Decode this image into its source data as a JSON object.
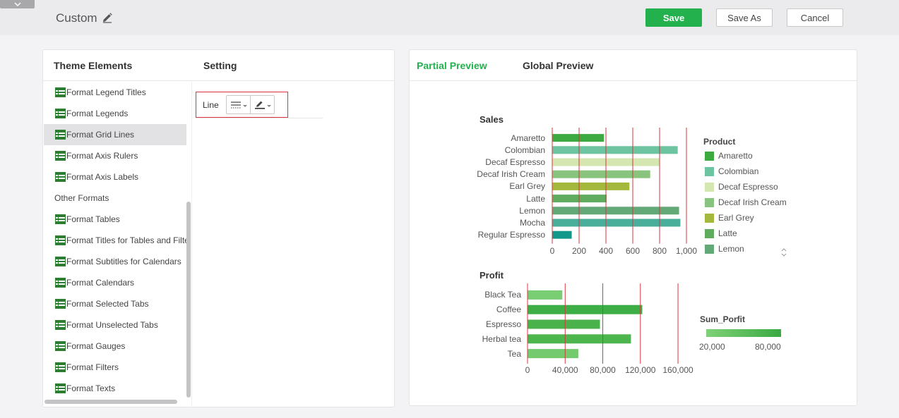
{
  "header": {
    "title": "Custom",
    "save_label": "Save",
    "save_as_label": "Save As",
    "cancel_label": "Cancel"
  },
  "left_panel": {
    "theme_elements_label": "Theme Elements",
    "setting_label": "Setting",
    "items": [
      {
        "label": "Format Legend Titles",
        "icon": "table-icon"
      },
      {
        "label": "Format Legends",
        "icon": "table-icon"
      },
      {
        "label": "Format Grid Lines",
        "icon": "table-icon",
        "selected": true
      },
      {
        "label": "Format Axis Rulers",
        "icon": "table-icon"
      },
      {
        "label": "Format Axis Labels",
        "icon": "table-icon"
      },
      {
        "label": "Other Formats",
        "icon": ""
      },
      {
        "label": "Format Tables",
        "icon": "table-icon"
      },
      {
        "label": "Format Titles for Tables and Filters",
        "icon": "table-icon"
      },
      {
        "label": "Format Subtitles for Calendars",
        "icon": "table-icon"
      },
      {
        "label": "Format Calendars",
        "icon": "table-icon"
      },
      {
        "label": "Format Selected Tabs",
        "icon": "table-icon"
      },
      {
        "label": "Format Unselected Tabs",
        "icon": "table-icon"
      },
      {
        "label": "Format Gauges",
        "icon": "table-icon"
      },
      {
        "label": "Format Filters",
        "icon": "table-icon"
      },
      {
        "label": "Format Texts",
        "icon": "table-icon"
      }
    ],
    "setting": {
      "line_label": "Line"
    }
  },
  "right_panel": {
    "partial_preview_label": "Partial Preview",
    "global_preview_label": "Global Preview",
    "accent": "#23b14d"
  },
  "chart_data": [
    {
      "type": "bar",
      "orientation": "horizontal",
      "title": "Sales",
      "categories": [
        "Amaretto",
        "Colombian",
        "Decaf Espresso",
        "Decaf Irish Cream",
        "Earl Grey",
        "Latte",
        "Lemon",
        "Mocha",
        "Regular Espresso"
      ],
      "values": [
        385,
        935,
        800,
        730,
        575,
        405,
        945,
        955,
        145
      ],
      "colors": [
        "#3daa41",
        "#6cc4a0",
        "#d4e7b0",
        "#88c47e",
        "#a4b83e",
        "#5fac5f",
        "#63a877",
        "#4aaf9a",
        "#12988a"
      ],
      "xlim": [
        0,
        1000
      ],
      "xticks": [
        "0",
        "200",
        "400",
        "600",
        "800",
        "1,000"
      ],
      "xtick_values": [
        0,
        200,
        400,
        600,
        800,
        1000
      ],
      "gridline_values": [
        200,
        400,
        600,
        800,
        1000
      ],
      "gridline_color": "#d9363e",
      "legend_title": "Product",
      "legend": [
        "Amaretto",
        "Colombian",
        "Decaf Espresso",
        "Decaf Irish Cream",
        "Earl Grey",
        "Latte",
        "Lemon"
      ],
      "legend_colors": [
        "#3daa41",
        "#6cc4a0",
        "#d4e7b0",
        "#88c47e",
        "#a4b83e",
        "#5fac5f",
        "#63a877"
      ]
    },
    {
      "type": "bar",
      "orientation": "horizontal",
      "title": "Profit",
      "categories": [
        "Black Tea",
        "Coffee",
        "Espresso",
        "Herbal tea",
        "Tea"
      ],
      "values": [
        37000,
        122000,
        77000,
        110000,
        54000
      ],
      "colors": [
        "#79cd72",
        "#3dae46",
        "#4ab24a",
        "#4cb54d",
        "#74cb6e"
      ],
      "xlim": [
        0,
        190000
      ],
      "xticks": [
        "0",
        "40,000",
        "80,000",
        "120,000",
        "160,000"
      ],
      "xtick_values": [
        0,
        40000,
        80000,
        120000,
        160000
      ],
      "gridline_values": [
        40000,
        80000,
        120000,
        160000
      ],
      "gridline_color": "#d9363e",
      "legend_title": "Sum_Porfit",
      "legend_range_labels": [
        "20,000",
        "80,000"
      ],
      "legend_gradient": [
        "#7fd177",
        "#3aaa42"
      ]
    }
  ]
}
